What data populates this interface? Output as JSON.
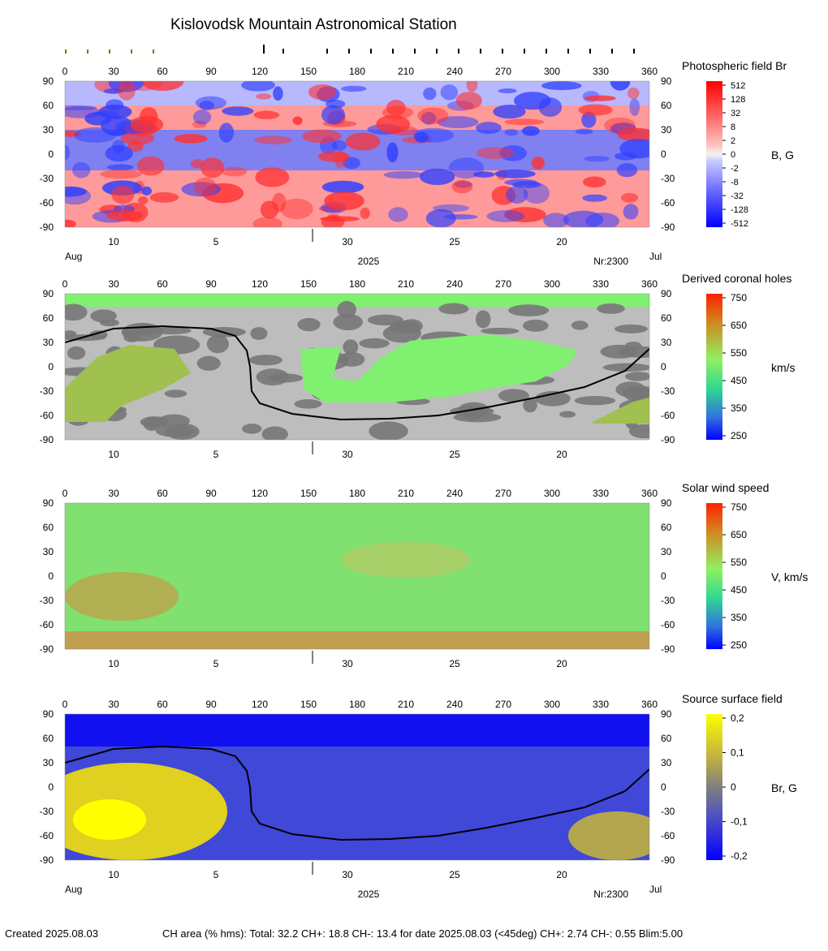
{
  "page_title": "Kislovodsk Mountain Astronomical Station",
  "footer": {
    "created": "Created  2025.08.03",
    "ch_area": "CH area (% hms): Total: 32.2 CH+: 18.8   CH-: 13.4 for date 2025.08.03 (<45deg) CH+: 2.74    CH-: 0.55 Blim:5.00"
  },
  "axes": {
    "lon_ticks": [
      "0",
      "30",
      "60",
      "90",
      "120",
      "150",
      "180",
      "210",
      "240",
      "270",
      "300",
      "330",
      "360"
    ],
    "lat_ticks": [
      "90",
      "60",
      "30",
      "0",
      "-30",
      "-60",
      "-90"
    ],
    "date_labels": [
      {
        "text": "10",
        "lon": 30
      },
      {
        "text": "5",
        "lon": 93
      },
      {
        "text": "30",
        "lon": 174
      },
      {
        "text": "25",
        "lon": 240
      },
      {
        "text": "20",
        "lon": 306
      }
    ],
    "month_left": "Aug",
    "month_right": "Jul",
    "year": "2025",
    "rotation": "Nr:2300"
  },
  "chart_data": [
    {
      "type": "heatmap",
      "title": "Photospheric field Br",
      "colorbar_label": "B, G",
      "colorbar_ticks": [
        "512",
        "128",
        "32",
        "8",
        "2",
        "0",
        "-2",
        "-8",
        "-32",
        "-128",
        "-512"
      ],
      "x_range": [
        0,
        360
      ],
      "y_range": [
        -90,
        90
      ],
      "bottom_labels": true,
      "top_ticks": true
    },
    {
      "type": "heatmap",
      "title": "Derived coronal holes",
      "colorbar_label": "km/s",
      "colorbar_ticks": [
        "750",
        "650",
        "550",
        "450",
        "350",
        "250"
      ],
      "x_range": [
        0,
        360
      ],
      "y_range": [
        -90,
        90
      ],
      "neutral_line": [
        [
          0,
          30
        ],
        [
          30,
          47
        ],
        [
          60,
          50
        ],
        [
          90,
          47
        ],
        [
          105,
          38
        ],
        [
          112,
          20
        ],
        [
          114,
          0
        ],
        [
          115,
          -30
        ],
        [
          120,
          -45
        ],
        [
          140,
          -58
        ],
        [
          170,
          -65
        ],
        [
          200,
          -64
        ],
        [
          230,
          -60
        ],
        [
          260,
          -50
        ],
        [
          290,
          -38
        ],
        [
          320,
          -25
        ],
        [
          345,
          -5
        ],
        [
          360,
          22
        ]
      ]
    },
    {
      "type": "heatmap",
      "title": "Solar wind speed",
      "colorbar_label": "V, km/s",
      "colorbar_ticks": [
        "750",
        "650",
        "550",
        "450",
        "350",
        "250"
      ],
      "x_range": [
        0,
        360
      ],
      "y_range": [
        -90,
        90
      ]
    },
    {
      "type": "heatmap",
      "title": "Source surface field",
      "colorbar_label": "Br, G",
      "colorbar_ticks": [
        "0,2",
        "0,1",
        "0",
        "-0,1",
        "-0,2"
      ],
      "x_range": [
        0,
        360
      ],
      "y_range": [
        -90,
        90
      ],
      "neutral_line": [
        [
          0,
          30
        ],
        [
          30,
          47
        ],
        [
          60,
          50
        ],
        [
          90,
          47
        ],
        [
          105,
          38
        ],
        [
          112,
          20
        ],
        [
          114,
          0
        ],
        [
          115,
          -30
        ],
        [
          120,
          -45
        ],
        [
          140,
          -58
        ],
        [
          170,
          -65
        ],
        [
          200,
          -64
        ],
        [
          230,
          -60
        ],
        [
          260,
          -50
        ],
        [
          290,
          -38
        ],
        [
          320,
          -25
        ],
        [
          345,
          -5
        ],
        [
          360,
          22
        ]
      ],
      "bottom_labels": true
    }
  ]
}
